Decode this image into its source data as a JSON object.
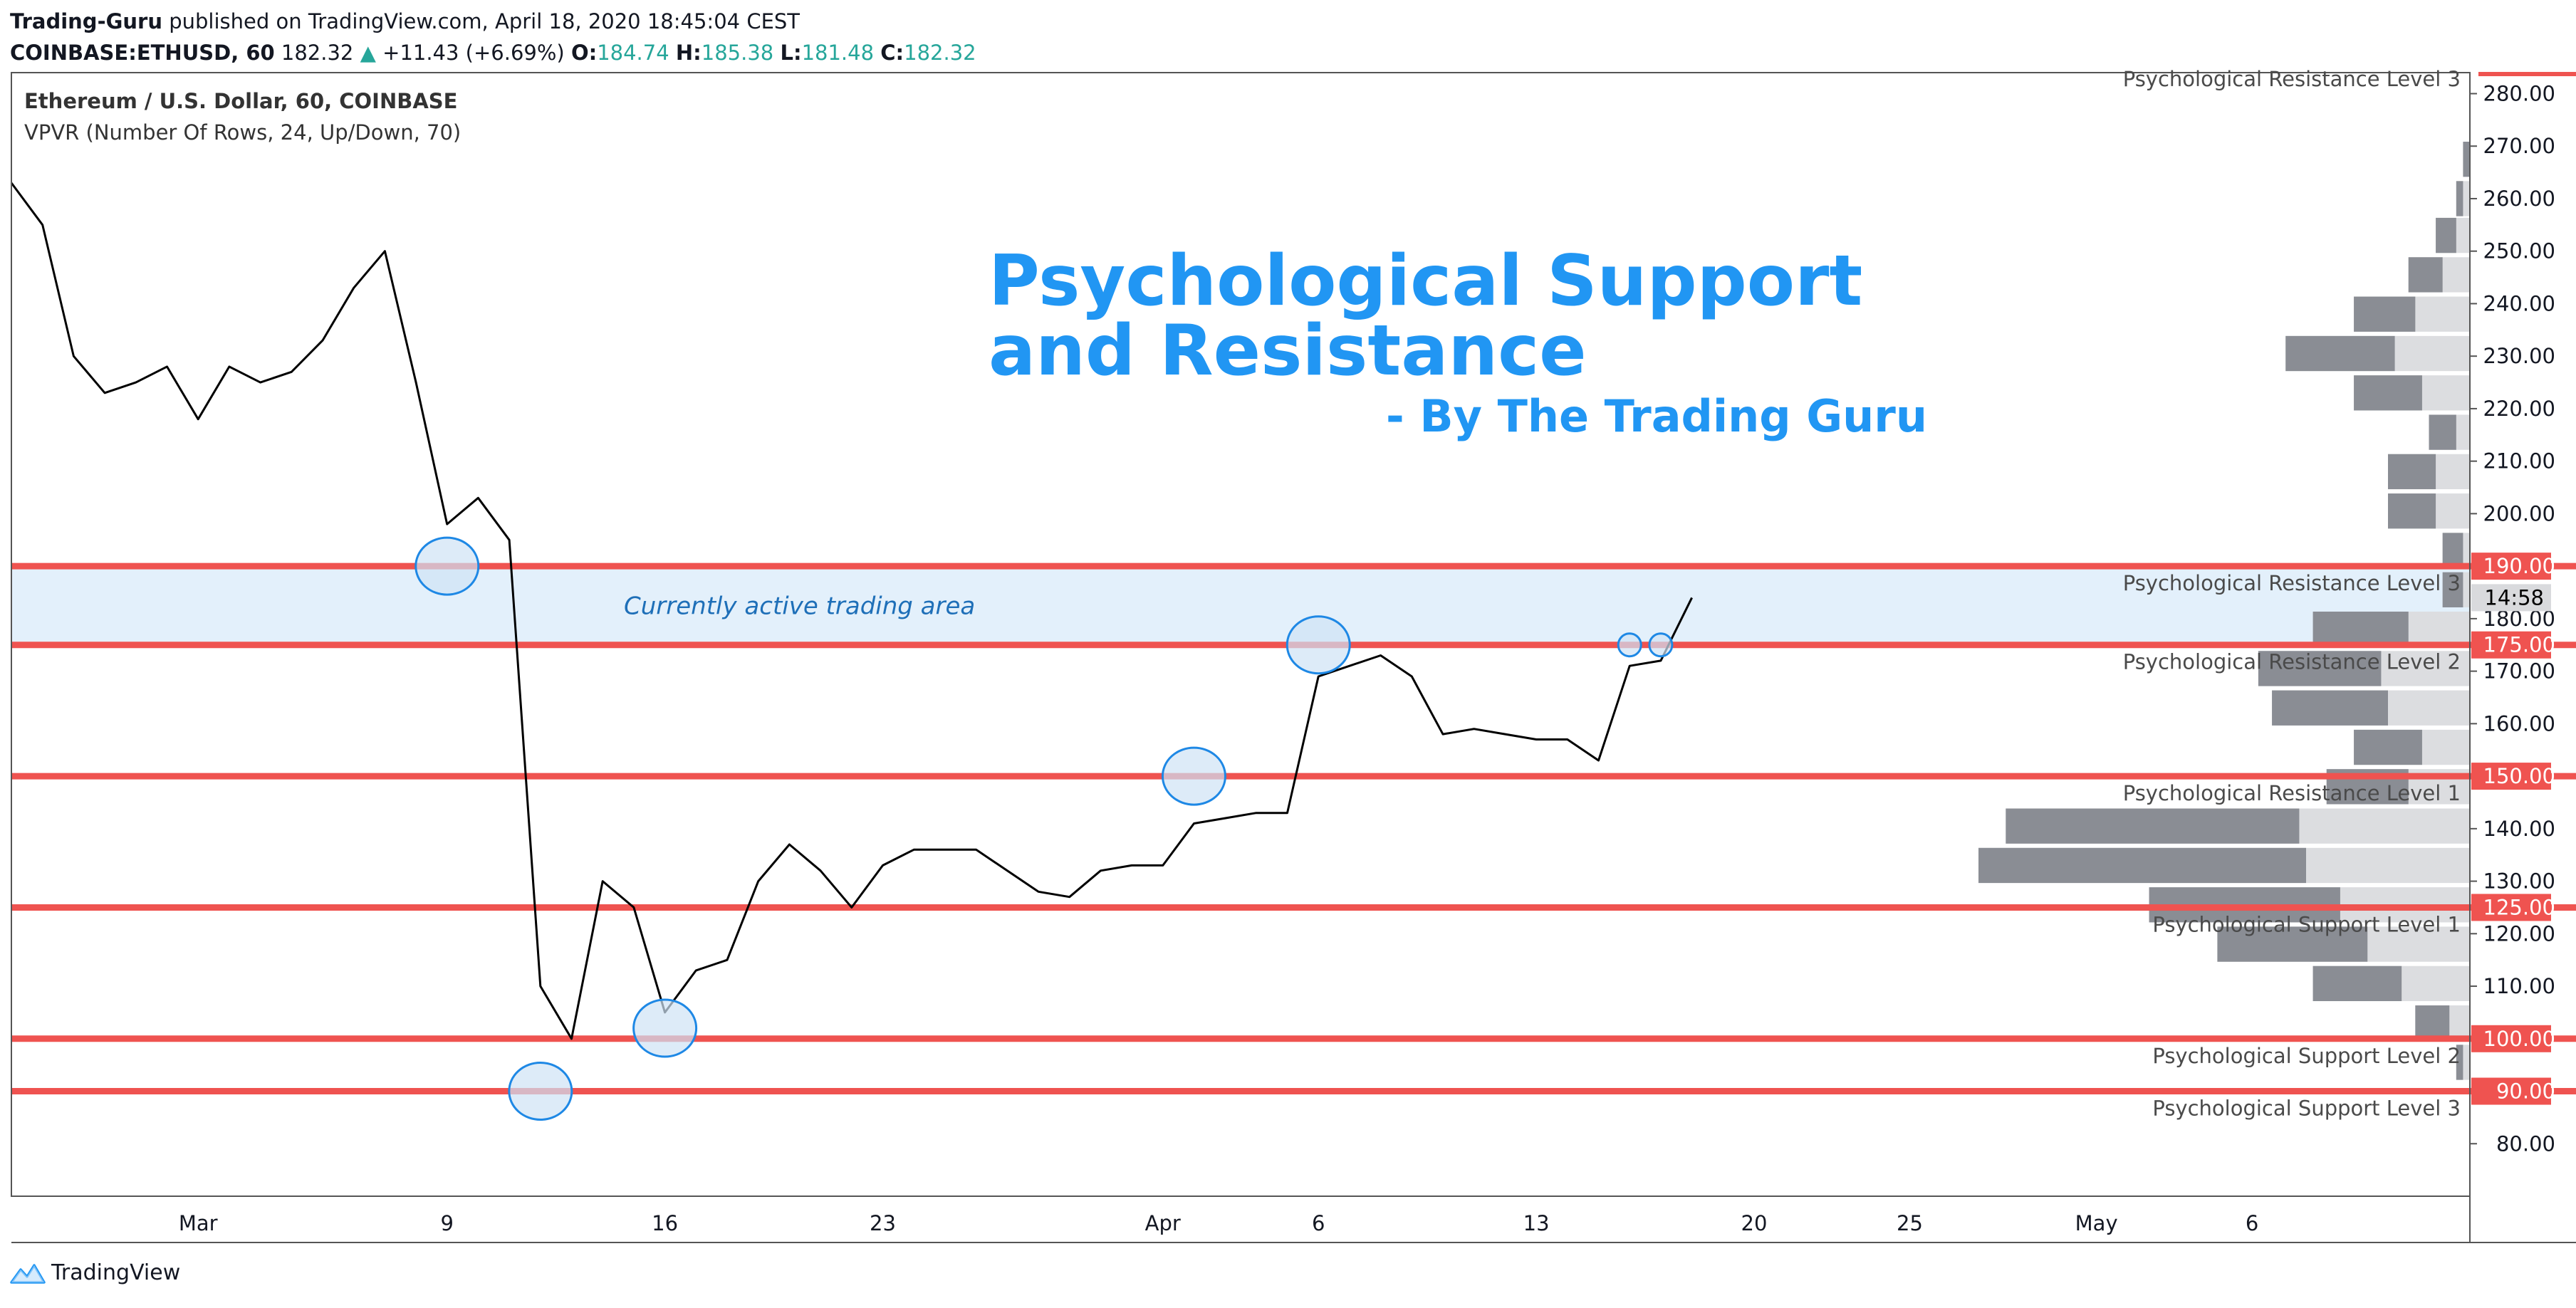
{
  "header": {
    "author": "Trading-Guru",
    "published": "published on TradingView.com, April 18, 2020 18:45:04 CEST",
    "symbol": "COINBASE:ETHUSD, 60",
    "last": "182.32",
    "change_arrow": "▲",
    "change": "+11.43 (+6.69%)",
    "o_label": "O:",
    "o": "184.74",
    "h_label": "H:",
    "h": "185.38",
    "l_label": "L:",
    "l": "181.48",
    "c_label": "C:",
    "c": "182.32"
  },
  "footer": {
    "brand": "TradingView",
    "logo_icon": "tradingview-logo-icon"
  },
  "colors": {
    "level_line": "#ef5350",
    "title": "#2196f3",
    "zone_fill": "#e3f0fb",
    "circle_fill": "#cfe3f5",
    "circle_stroke": "#1e88e5",
    "profile_dark": "#8a8d94",
    "profile_light": "#dcdde0",
    "axis_text": "#131722"
  },
  "chart_data": {
    "type": "line",
    "title": "Psychological Support and Resistance",
    "subtitle": "- By The Trading Guru",
    "instrument": "Ethereum / U.S. Dollar, 60, COINBASE",
    "indicator": "VPVR (Number Of Rows, 24, Up/Down, 70)",
    "x_tick_labels": [
      "Mar",
      "9",
      "16",
      "23",
      "Apr",
      "6",
      "13",
      "20",
      "25",
      "May",
      "6"
    ],
    "y_tick_labels": [
      "80.00",
      "110.00",
      "120.00",
      "130.00",
      "140.00",
      "160.00",
      "170.00",
      "180.00",
      "200.00",
      "210.00",
      "220.00",
      "230.00",
      "240.00",
      "250.00",
      "260.00",
      "270.00",
      "280.00"
    ],
    "ylim": [
      70,
      284
    ],
    "xlim": [
      "2020-02-24",
      "2020-05-13"
    ],
    "price_series": [
      [
        "2020-02-24",
        263
      ],
      [
        "2020-02-25",
        255
      ],
      [
        "2020-02-26",
        230
      ],
      [
        "2020-02-27",
        223
      ],
      [
        "2020-02-28",
        225
      ],
      [
        "2020-02-29",
        228
      ],
      [
        "2020-03-01",
        218
      ],
      [
        "2020-03-02",
        228
      ],
      [
        "2020-03-03",
        225
      ],
      [
        "2020-03-04",
        227
      ],
      [
        "2020-03-05",
        233
      ],
      [
        "2020-03-06",
        243
      ],
      [
        "2020-03-07",
        250
      ],
      [
        "2020-03-08",
        225
      ],
      [
        "2020-03-09",
        198
      ],
      [
        "2020-03-10",
        203
      ],
      [
        "2020-03-11",
        195
      ],
      [
        "2020-03-12",
        110
      ],
      [
        "2020-03-13",
        100
      ],
      [
        "2020-03-14",
        130
      ],
      [
        "2020-03-15",
        125
      ],
      [
        "2020-03-16",
        105
      ],
      [
        "2020-03-17",
        113
      ],
      [
        "2020-03-18",
        115
      ],
      [
        "2020-03-19",
        130
      ],
      [
        "2020-03-20",
        137
      ],
      [
        "2020-03-21",
        132
      ],
      [
        "2020-03-22",
        125
      ],
      [
        "2020-03-23",
        133
      ],
      [
        "2020-03-24",
        136
      ],
      [
        "2020-03-25",
        136
      ],
      [
        "2020-03-26",
        136
      ],
      [
        "2020-03-27",
        132
      ],
      [
        "2020-03-28",
        128
      ],
      [
        "2020-03-29",
        127
      ],
      [
        "2020-03-30",
        132
      ],
      [
        "2020-03-31",
        133
      ],
      [
        "2020-04-01",
        133
      ],
      [
        "2020-04-02",
        141
      ],
      [
        "2020-04-03",
        142
      ],
      [
        "2020-04-04",
        143
      ],
      [
        "2020-04-05",
        143
      ],
      [
        "2020-04-06",
        169
      ],
      [
        "2020-04-07",
        171
      ],
      [
        "2020-04-08",
        173
      ],
      [
        "2020-04-09",
        169
      ],
      [
        "2020-04-10",
        158
      ],
      [
        "2020-04-11",
        159
      ],
      [
        "2020-04-12",
        158
      ],
      [
        "2020-04-13",
        157
      ],
      [
        "2020-04-14",
        157
      ],
      [
        "2020-04-15",
        153
      ],
      [
        "2020-04-16",
        171
      ],
      [
        "2020-04-17",
        172
      ],
      [
        "2020-04-18",
        184
      ]
    ],
    "levels": [
      {
        "value": 190,
        "label": "190.00",
        "name": "Psychological Resistance Level 3"
      },
      {
        "value": 175,
        "label": "175.00",
        "name": "Psychological Resistance Level 2"
      },
      {
        "value": 150,
        "label": "150.00",
        "name": "Psychological Resistance Level 1"
      },
      {
        "value": 125,
        "label": "125.00",
        "name": "Psychological Support Level 1"
      },
      {
        "value": 100,
        "label": "100.00",
        "name": "Psychological Support Level 2"
      },
      {
        "value": 90,
        "label": "90.00",
        "name": "Psychological Support Level 3"
      }
    ],
    "top_level_label": "Psychological Resistance Level 3",
    "active_zone": {
      "from": 175,
      "to": 190,
      "label": "Currently active trading area"
    },
    "price_marker": "14:58",
    "highlight_circles": [
      {
        "date": "2020-03-09",
        "price": 190
      },
      {
        "date": "2020-03-12",
        "price": 90
      },
      {
        "date": "2020-03-16",
        "price": 102
      },
      {
        "date": "2020-04-02",
        "price": 150
      },
      {
        "date": "2020-04-06",
        "price": 175
      },
      {
        "date": "2020-04-16",
        "price": 175
      },
      {
        "date": "2020-04-17",
        "price": 175
      }
    ],
    "volume_profile": [
      {
        "price": 267.5,
        "total": 1,
        "up": 0.9
      },
      {
        "price": 260,
        "total": 2,
        "up": 1
      },
      {
        "price": 253,
        "total": 5,
        "up": 3
      },
      {
        "price": 245.5,
        "total": 9,
        "up": 5
      },
      {
        "price": 238,
        "total": 17,
        "up": 9
      },
      {
        "price": 230.5,
        "total": 27,
        "up": 16
      },
      {
        "price": 223,
        "total": 17,
        "up": 10
      },
      {
        "price": 215.5,
        "total": 6,
        "up": 4
      },
      {
        "price": 208,
        "total": 12,
        "up": 7
      },
      {
        "price": 200.5,
        "total": 12,
        "up": 7
      },
      {
        "price": 193,
        "total": 4,
        "up": 3
      },
      {
        "price": 185.5,
        "total": 4,
        "up": 3
      },
      {
        "price": 178,
        "total": 23,
        "up": 14
      },
      {
        "price": 170.5,
        "total": 31,
        "up": 18
      },
      {
        "price": 163,
        "total": 29,
        "up": 17
      },
      {
        "price": 155.5,
        "total": 17,
        "up": 10
      },
      {
        "price": 148,
        "total": 21,
        "up": 12
      },
      {
        "price": 140.5,
        "total": 68,
        "up": 43
      },
      {
        "price": 133,
        "total": 72,
        "up": 48
      },
      {
        "price": 125.5,
        "total": 47,
        "up": 28
      },
      {
        "price": 118,
        "total": 37,
        "up": 22
      },
      {
        "price": 110.5,
        "total": 23,
        "up": 13
      },
      {
        "price": 103,
        "total": 8,
        "up": 5
      },
      {
        "price": 95.5,
        "total": 2,
        "up": 1
      }
    ]
  }
}
